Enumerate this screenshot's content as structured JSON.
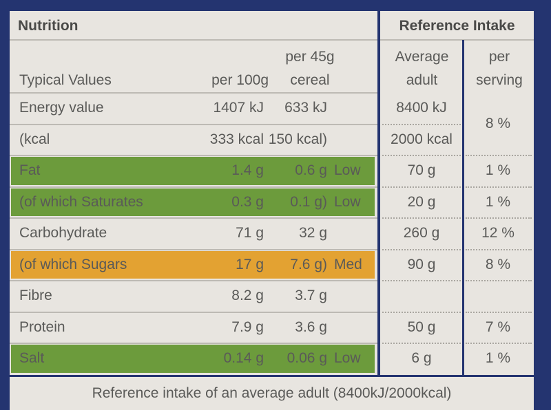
{
  "table": {
    "title": "Nutrition",
    "reference_title": "Reference Intake",
    "columns": [
      "Typical Values",
      "per 100g",
      "per 45g cereal",
      "Average adult",
      "per serving"
    ],
    "rows": [
      {
        "label": "Energy value",
        "per_100g": "1407 kJ",
        "per_45g": "633 kJ",
        "intake": "8400 kJ",
        "percent": "8 %"
      },
      {
        "label": "(kcal",
        "per_100g": "333 kcal",
        "per_45g": "150 kcal)",
        "intake": "2000 kcal"
      },
      {
        "label": "Fat",
        "per_100g": "1.4 g",
        "per_45g": "0.6 g",
        "level": "Low",
        "intake": "70 g",
        "percent": "1 %",
        "color": "#6c9b3c"
      },
      {
        "label": "(of which Saturates",
        "per_100g": "0.3 g",
        "per_45g": "0.1 g)",
        "level": "Low",
        "intake": "20 g",
        "percent": "1 %",
        "color": "#6c9b3c"
      },
      {
        "label": "Carbohydrate",
        "per_100g": "71 g",
        "per_45g": "32 g",
        "intake": "260 g",
        "percent": "12 %"
      },
      {
        "label": "(of which Sugars",
        "per_100g": "17 g",
        "per_45g": "7.6 g)",
        "level": "Med",
        "intake": "90 g",
        "percent": "8 %",
        "color": "#e3a232"
      },
      {
        "label": "Fibre",
        "per_100g": "8.2 g",
        "per_45g": "3.7 g"
      },
      {
        "label": "Protein",
        "per_100g": "7.9 g",
        "per_45g": "3.6 g",
        "intake": "50 g",
        "percent": "7 %"
      },
      {
        "label": "Salt",
        "per_100g": "0.14 g",
        "per_45g": "0.06 g",
        "level": "Low",
        "intake": "6 g",
        "percent": "1 %",
        "color": "#6c9b3c"
      }
    ],
    "footer": "Reference intake of an average adult (8400kJ/2000kcal)"
  }
}
